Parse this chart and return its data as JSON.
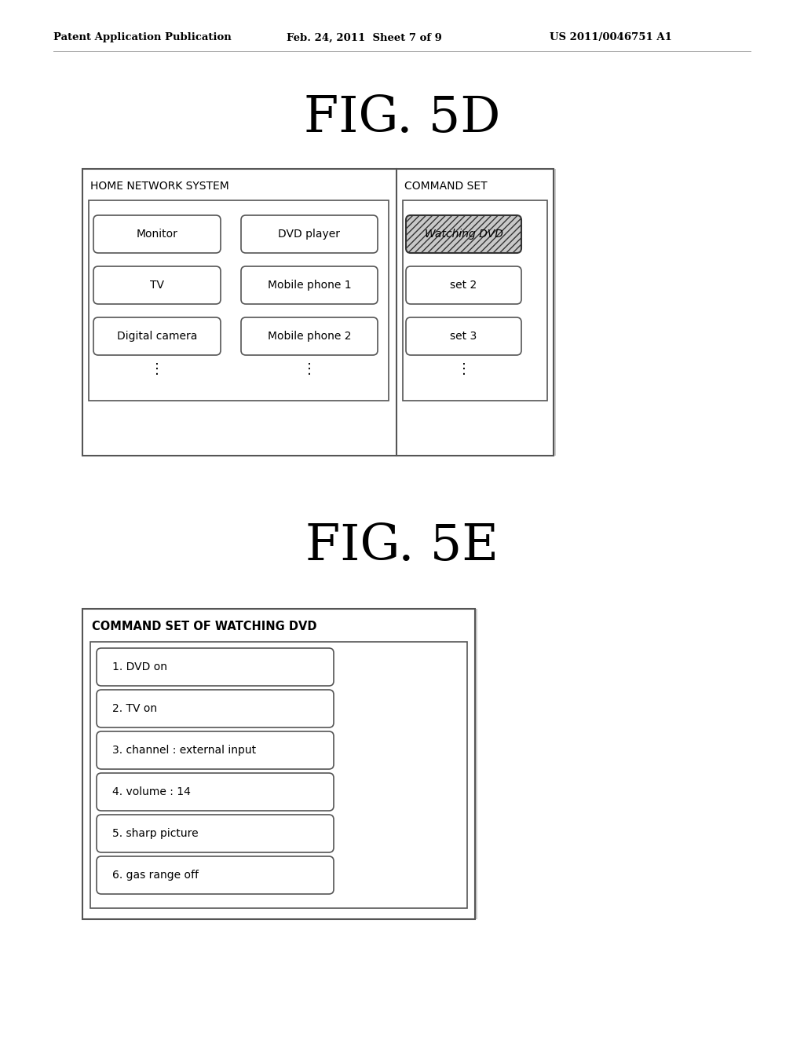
{
  "header_left": "Patent Application Publication",
  "header_mid": "Feb. 24, 2011  Sheet 7 of 9",
  "header_right": "US 2011/0046751 A1",
  "fig5d_title": "FIG. 5D",
  "fig5e_title": "FIG. 5E",
  "fig5d": {
    "panel1_title": "HOME NETWORK SYSTEM",
    "panel2_title": "COMMAND SET",
    "col1_items": [
      "Monitor",
      "TV",
      "Digital camera"
    ],
    "col2_items": [
      "DVD player",
      "Mobile phone 1",
      "Mobile phone 2"
    ],
    "col3_items": [
      "Watching DVD",
      "set 2",
      "set 3"
    ],
    "col3_highlighted": 0
  },
  "fig5e": {
    "title": "COMMAND SET OF WATCHING DVD",
    "items": [
      "1. DVD on",
      "2. TV on",
      "3. channel : external input",
      "4. volume : 14",
      "5. sharp picture",
      "6. gas range off"
    ]
  },
  "bg_color": "#ffffff",
  "text_color": "#000000",
  "box_edge_color": "#555555"
}
